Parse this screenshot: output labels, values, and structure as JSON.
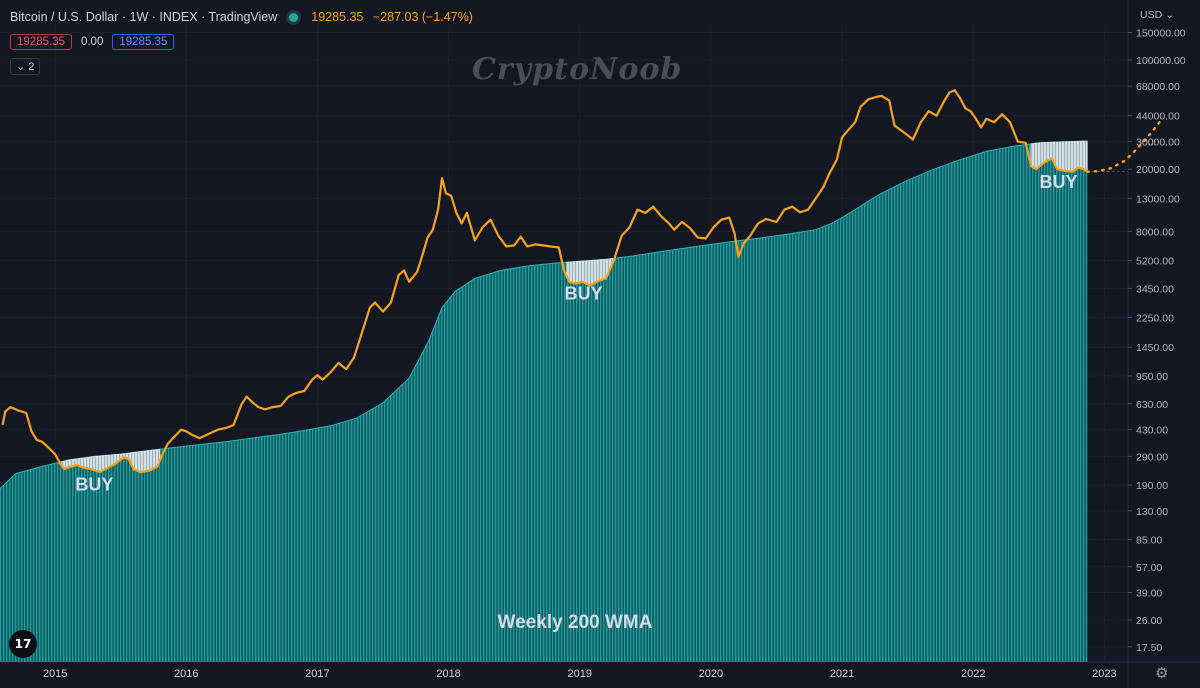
{
  "header": {
    "symbol": "Bitcoin / U.S. Dollar",
    "interval": "1W",
    "exchange": "INDEX",
    "source": "TradingView",
    "last_price": "19285.35",
    "change": "−287.03 (−1.47%)",
    "bid": "19285.35",
    "spread": "0.00",
    "ask": "19285.35",
    "indicators_count": "2"
  },
  "watermark": "CryptoNoob",
  "currency_menu": "USD",
  "logo_text": "17",
  "settings_icon": "gear-icon",
  "colors": {
    "background": "#131722",
    "price": "#f7a21b",
    "wma": "#1a8a8e",
    "buy_zone": "#c9d6dd",
    "axis_text": "#b2b5be"
  },
  "chart_data": {
    "type": "line",
    "y_scale": "log",
    "x_ticks": [
      "2015",
      "2016",
      "2017",
      "2018",
      "2019",
      "2020",
      "2021",
      "2022",
      "2023"
    ],
    "y_ticks": [
      "150000.00",
      "100000.00",
      "68000.00",
      "44000.00",
      "30000.00",
      "20000.00",
      "13000.00",
      "8000.00",
      "5200.00",
      "3450.00",
      "2250.00",
      "1450.00",
      "950.00",
      "630.00",
      "430.00",
      "290.00",
      "190.00",
      "130.00",
      "85.00",
      "57.00",
      "39.00",
      "26.00",
      "17.50"
    ],
    "ylim": [
      14,
      170000
    ],
    "xlim": [
      2014.58,
      2023.18
    ],
    "series": [
      {
        "name": "",
        "kind": "price",
        "points": [
          [
            2014.6,
            460
          ],
          [
            2014.62,
            560
          ],
          [
            2014.66,
            600
          ],
          [
            2014.72,
            570
          ],
          [
            2014.78,
            550
          ],
          [
            2014.82,
            420
          ],
          [
            2014.86,
            370
          ],
          [
            2014.9,
            360
          ],
          [
            2014.95,
            330
          ],
          [
            2015.0,
            300
          ],
          [
            2015.04,
            260
          ],
          [
            2015.07,
            240
          ],
          [
            2015.12,
            250
          ],
          [
            2015.17,
            255
          ],
          [
            2015.22,
            245
          ],
          [
            2015.28,
            240
          ],
          [
            2015.34,
            230
          ],
          [
            2015.4,
            245
          ],
          [
            2015.46,
            260
          ],
          [
            2015.52,
            285
          ],
          [
            2015.56,
            280
          ],
          [
            2015.6,
            240
          ],
          [
            2015.65,
            230
          ],
          [
            2015.72,
            235
          ],
          [
            2015.78,
            250
          ],
          [
            2015.82,
            300
          ],
          [
            2015.86,
            350
          ],
          [
            2015.9,
            380
          ],
          [
            2015.96,
            430
          ],
          [
            2016.0,
            420
          ],
          [
            2016.04,
            400
          ],
          [
            2016.1,
            380
          ],
          [
            2016.16,
            400
          ],
          [
            2016.24,
            430
          ],
          [
            2016.3,
            440
          ],
          [
            2016.36,
            460
          ],
          [
            2016.42,
            620
          ],
          [
            2016.46,
            700
          ],
          [
            2016.5,
            650
          ],
          [
            2016.55,
            600
          ],
          [
            2016.6,
            580
          ],
          [
            2016.66,
            600
          ],
          [
            2016.72,
            610
          ],
          [
            2016.78,
            700
          ],
          [
            2016.84,
            740
          ],
          [
            2016.9,
            760
          ],
          [
            2016.96,
            900
          ],
          [
            2017.0,
            960
          ],
          [
            2017.04,
            900
          ],
          [
            2017.1,
            1000
          ],
          [
            2017.16,
            1150
          ],
          [
            2017.22,
            1050
          ],
          [
            2017.28,
            1250
          ],
          [
            2017.34,
            1800
          ],
          [
            2017.4,
            2600
          ],
          [
            2017.44,
            2800
          ],
          [
            2017.5,
            2450
          ],
          [
            2017.56,
            2800
          ],
          [
            2017.62,
            4200
          ],
          [
            2017.66,
            4500
          ],
          [
            2017.7,
            3800
          ],
          [
            2017.76,
            4400
          ],
          [
            2017.8,
            5600
          ],
          [
            2017.84,
            7300
          ],
          [
            2017.88,
            8200
          ],
          [
            2017.92,
            11000
          ],
          [
            2017.95,
            17500
          ],
          [
            2017.98,
            14000
          ],
          [
            2018.02,
            13500
          ],
          [
            2018.06,
            10500
          ],
          [
            2018.1,
            9000
          ],
          [
            2018.14,
            10500
          ],
          [
            2018.2,
            7000
          ],
          [
            2018.26,
            8500
          ],
          [
            2018.32,
            9500
          ],
          [
            2018.38,
            7500
          ],
          [
            2018.44,
            6400
          ],
          [
            2018.5,
            6500
          ],
          [
            2018.55,
            7400
          ],
          [
            2018.6,
            6400
          ],
          [
            2018.66,
            6600
          ],
          [
            2018.72,
            6500
          ],
          [
            2018.78,
            6400
          ],
          [
            2018.84,
            6300
          ],
          [
            2018.88,
            4500
          ],
          [
            2018.92,
            3800
          ],
          [
            2018.97,
            3700
          ],
          [
            2019.02,
            3800
          ],
          [
            2019.08,
            3600
          ],
          [
            2019.14,
            3850
          ],
          [
            2019.2,
            4000
          ],
          [
            2019.26,
            5200
          ],
          [
            2019.32,
            7500
          ],
          [
            2019.38,
            8500
          ],
          [
            2019.44,
            11000
          ],
          [
            2019.5,
            10500
          ],
          [
            2019.56,
            11500
          ],
          [
            2019.62,
            10000
          ],
          [
            2019.68,
            9000
          ],
          [
            2019.72,
            8200
          ],
          [
            2019.78,
            9200
          ],
          [
            2019.84,
            8400
          ],
          [
            2019.9,
            7300
          ],
          [
            2019.96,
            7200
          ],
          [
            2020.02,
            8500
          ],
          [
            2020.08,
            9500
          ],
          [
            2020.14,
            9800
          ],
          [
            2020.18,
            7800
          ],
          [
            2020.21,
            5500
          ],
          [
            2020.25,
            6700
          ],
          [
            2020.3,
            7500
          ],
          [
            2020.36,
            9000
          ],
          [
            2020.42,
            9600
          ],
          [
            2020.5,
            9200
          ],
          [
            2020.56,
            11000
          ],
          [
            2020.62,
            11500
          ],
          [
            2020.68,
            10600
          ],
          [
            2020.74,
            11000
          ],
          [
            2020.8,
            13000
          ],
          [
            2020.86,
            15500
          ],
          [
            2020.9,
            18500
          ],
          [
            2020.96,
            23000
          ],
          [
            2021.0,
            32000
          ],
          [
            2021.04,
            35000
          ],
          [
            2021.1,
            40000
          ],
          [
            2021.14,
            50000
          ],
          [
            2021.2,
            56000
          ],
          [
            2021.26,
            58000
          ],
          [
            2021.3,
            59000
          ],
          [
            2021.36,
            55000
          ],
          [
            2021.4,
            38000
          ],
          [
            2021.46,
            35000
          ],
          [
            2021.5,
            33000
          ],
          [
            2021.54,
            31000
          ],
          [
            2021.6,
            40000
          ],
          [
            2021.66,
            47000
          ],
          [
            2021.72,
            44000
          ],
          [
            2021.78,
            55000
          ],
          [
            2021.82,
            62000
          ],
          [
            2021.86,
            64000
          ],
          [
            2021.9,
            57000
          ],
          [
            2021.94,
            49000
          ],
          [
            2021.98,
            47000
          ],
          [
            2022.02,
            42000
          ],
          [
            2022.06,
            37000
          ],
          [
            2022.1,
            42000
          ],
          [
            2022.16,
            40000
          ],
          [
            2022.22,
            45000
          ],
          [
            2022.28,
            40000
          ],
          [
            2022.34,
            30000
          ],
          [
            2022.4,
            29500
          ],
          [
            2022.44,
            21000
          ],
          [
            2022.48,
            20000
          ],
          [
            2022.54,
            22000
          ],
          [
            2022.6,
            23500
          ],
          [
            2022.64,
            20000
          ],
          [
            2022.7,
            19500
          ],
          [
            2022.76,
            19300
          ],
          [
            2022.8,
            20500
          ],
          [
            2022.84,
            20000
          ],
          [
            2022.87,
            19285
          ]
        ]
      },
      {
        "name": "Weekly 200 WMA",
        "kind": "wma",
        "points": [
          [
            2014.58,
            180
          ],
          [
            2014.7,
            225
          ],
          [
            2014.9,
            250
          ],
          [
            2015.1,
            275
          ],
          [
            2015.3,
            290
          ],
          [
            2015.5,
            300
          ],
          [
            2015.7,
            315
          ],
          [
            2015.9,
            330
          ],
          [
            2016.1,
            345
          ],
          [
            2016.3,
            360
          ],
          [
            2016.5,
            380
          ],
          [
            2016.7,
            400
          ],
          [
            2016.9,
            425
          ],
          [
            2017.1,
            455
          ],
          [
            2017.3,
            510
          ],
          [
            2017.5,
            640
          ],
          [
            2017.7,
            920
          ],
          [
            2017.85,
            1600
          ],
          [
            2017.95,
            2600
          ],
          [
            2018.05,
            3300
          ],
          [
            2018.2,
            4000
          ],
          [
            2018.4,
            4500
          ],
          [
            2018.6,
            4800
          ],
          [
            2018.8,
            5000
          ],
          [
            2019.0,
            5150
          ],
          [
            2019.2,
            5300
          ],
          [
            2019.4,
            5550
          ],
          [
            2019.6,
            5900
          ],
          [
            2019.8,
            6250
          ],
          [
            2020.0,
            6600
          ],
          [
            2020.2,
            6950
          ],
          [
            2020.4,
            7300
          ],
          [
            2020.6,
            7700
          ],
          [
            2020.8,
            8200
          ],
          [
            2020.92,
            9000
          ],
          [
            2021.0,
            9800
          ],
          [
            2021.1,
            11000
          ],
          [
            2021.2,
            12500
          ],
          [
            2021.3,
            14000
          ],
          [
            2021.5,
            17000
          ],
          [
            2021.7,
            20000
          ],
          [
            2021.9,
            23000
          ],
          [
            2022.1,
            26000
          ],
          [
            2022.3,
            28000
          ],
          [
            2022.5,
            29500
          ],
          [
            2022.7,
            30000
          ],
          [
            2022.87,
            30300
          ]
        ]
      },
      {
        "name": "",
        "kind": "projection",
        "points": [
          [
            2022.87,
            19285
          ],
          [
            2022.95,
            19400
          ],
          [
            2023.05,
            20300
          ],
          [
            2023.15,
            22500
          ],
          [
            2023.22,
            25500
          ],
          [
            2023.3,
            30000
          ],
          [
            2023.36,
            34500
          ],
          [
            2023.42,
            40000
          ]
        ]
      }
    ],
    "buy_zones": [
      {
        "label": "BUY",
        "x0": 2015.05,
        "x1": 2015.8
      },
      {
        "label": "BUY",
        "x0": 2018.9,
        "x1": 2019.25
      },
      {
        "label": "BUY",
        "x0": 2022.44,
        "x1": 2022.87
      }
    ],
    "annotations": [
      "BUY",
      "BUY",
      "BUY",
      "Weekly 200 WMA"
    ]
  }
}
